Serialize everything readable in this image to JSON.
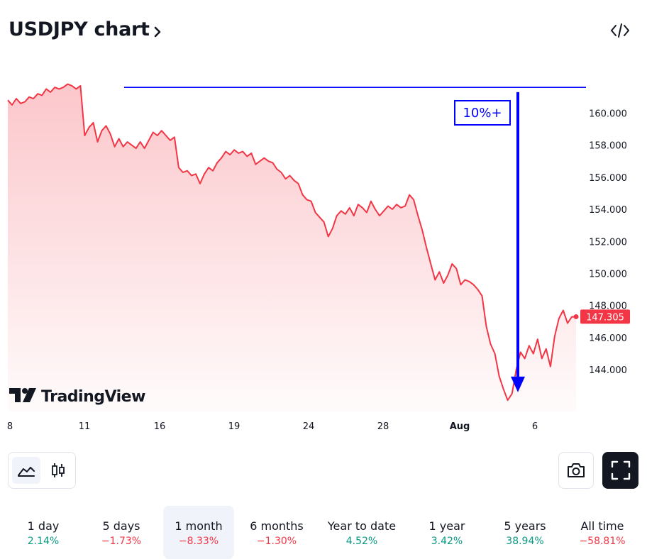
{
  "header": {
    "title": "USDJPY chart",
    "chevron_icon": "chevron-right-icon",
    "embed_icon": "code-embed-icon"
  },
  "chart_data": {
    "type": "area",
    "x_tick_labels": [
      "8",
      "11",
      "16",
      "19",
      "24",
      "28",
      "Aug",
      "6"
    ],
    "y_tick_labels": [
      "160.000",
      "158.000",
      "156.000",
      "154.000",
      "152.000",
      "150.000",
      "148.000",
      "146.000",
      "144.000"
    ],
    "y_ticks": [
      160,
      158,
      156,
      154,
      152,
      150,
      148,
      146,
      144
    ],
    "ylim": [
      141.4,
      162.8
    ],
    "last_price": 147.305,
    "last_price_label": "147.305",
    "line_color": "#f23645",
    "fill_color": "#f23645",
    "watermark": "TradingView",
    "series": [
      {
        "values": [
          160.8,
          160.5,
          160.9,
          160.6,
          160.7,
          161.0,
          160.9,
          161.2,
          161.1,
          161.5,
          161.3,
          161.6,
          161.5,
          161.6,
          161.8,
          161.7,
          161.5,
          161.7,
          158.6,
          159.1,
          159.4,
          158.2,
          158.9,
          159.2,
          158.7,
          157.9,
          158.4,
          157.9,
          158.2,
          158.0,
          157.8,
          158.2,
          157.8,
          158.3,
          158.8,
          158.6,
          158.9,
          158.6,
          158.3,
          158.5,
          156.6,
          156.3,
          156.4,
          156.1,
          156.2,
          155.6,
          156.2,
          156.6,
          156.4,
          156.9,
          157.2,
          157.6,
          157.4,
          157.7,
          157.5,
          157.6,
          157.3,
          157.5,
          156.8,
          157.0,
          157.2,
          157.0,
          156.9,
          156.5,
          156.3,
          155.9,
          156.1,
          155.8,
          155.6,
          154.9,
          154.6,
          154.5,
          153.8,
          153.5,
          153.2,
          152.3,
          152.8,
          153.6,
          153.9,
          153.7,
          154.1,
          153.6,
          154.3,
          154.1,
          153.8,
          154.5,
          154.0,
          153.6,
          153.9,
          154.2,
          154.0,
          154.3,
          154.1,
          154.2,
          154.9,
          154.6,
          153.6,
          152.7,
          151.6,
          150.6,
          149.6,
          150.1,
          149.4,
          149.9,
          150.6,
          150.3,
          149.3,
          149.6,
          149.5,
          149.3,
          149.0,
          148.6,
          146.7,
          145.6,
          145.0,
          143.6,
          142.8,
          142.1,
          142.5,
          144.0,
          145.1,
          144.7,
          145.5,
          145.0,
          145.9,
          144.7,
          145.3,
          144.2,
          146.1,
          147.2,
          147.7,
          146.9,
          147.3,
          147.305
        ]
      }
    ]
  },
  "annotation": {
    "label": "10%+",
    "line_color": "#0000ff",
    "arrow_color": "#0000ff",
    "hline_value": 161.6,
    "arrow_start_value": 161.3,
    "arrow_end_value": 142.6
  },
  "toolbar": {
    "area_icon": "area-chart-icon",
    "candles_icon": "candlestick-chart-icon",
    "camera_icon": "camera-icon",
    "fullscreen_icon": "fullscreen-icon"
  },
  "ranges": [
    {
      "label": "1 day",
      "change": "2.14%",
      "sign": "pos",
      "active": false
    },
    {
      "label": "5 days",
      "change": "−1.73%",
      "sign": "neg",
      "active": false
    },
    {
      "label": "1 month",
      "change": "−8.33%",
      "sign": "neg",
      "active": true
    },
    {
      "label": "6 months",
      "change": "−1.30%",
      "sign": "neg",
      "active": false
    },
    {
      "label": "Year to date",
      "change": "4.52%",
      "sign": "pos",
      "active": false
    },
    {
      "label": "1 year",
      "change": "3.42%",
      "sign": "pos",
      "active": false
    },
    {
      "label": "5 years",
      "change": "38.94%",
      "sign": "pos",
      "active": false
    },
    {
      "label": "All time",
      "change": "−58.81%",
      "sign": "neg",
      "active": false
    }
  ]
}
